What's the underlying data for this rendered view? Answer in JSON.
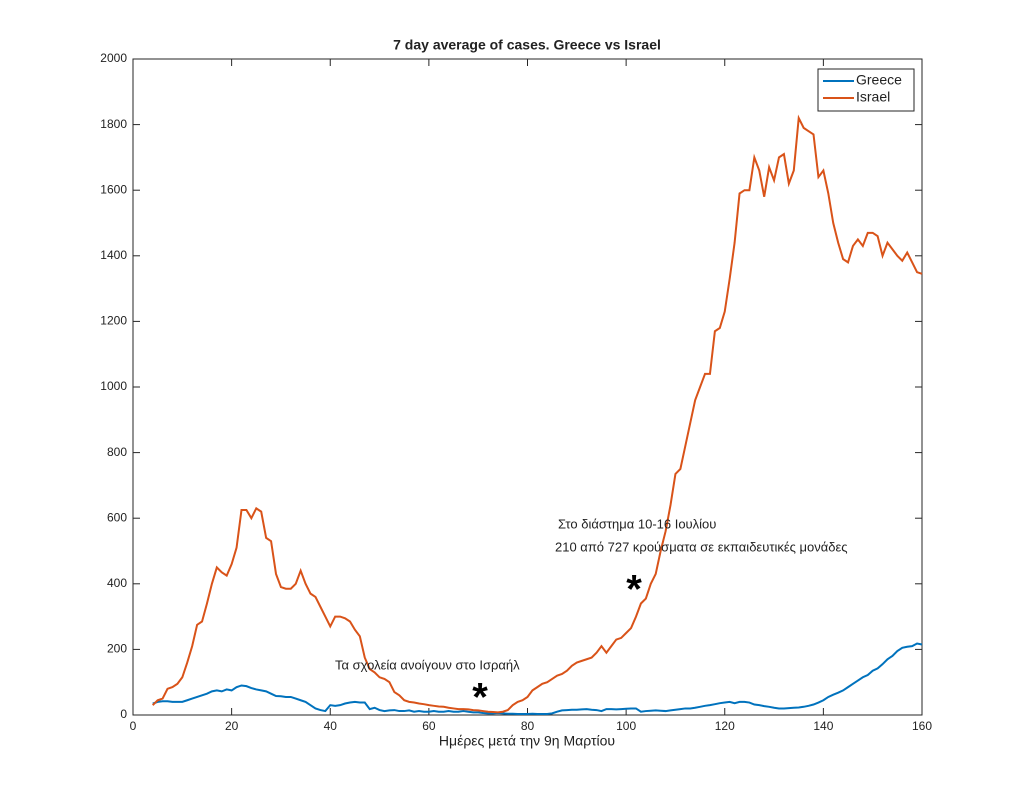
{
  "chart_data": {
    "type": "line",
    "title": "7 day average of cases. Greece vs Israel",
    "xlabel": "Ημέρες μετά την 9η Μαρτίου",
    "x": [
      4,
      5,
      6,
      7,
      8,
      9,
      10,
      11,
      12,
      13,
      14,
      15,
      16,
      17,
      18,
      19,
      20,
      21,
      22,
      23,
      24,
      25,
      26,
      27,
      28,
      29,
      30,
      31,
      32,
      33,
      34,
      35,
      36,
      37,
      38,
      39,
      40,
      41,
      42,
      43,
      44,
      45,
      46,
      47,
      48,
      49,
      50,
      51,
      52,
      53,
      54,
      55,
      56,
      57,
      58,
      59,
      60,
      61,
      62,
      63,
      64,
      65,
      66,
      67,
      68,
      69,
      70,
      71,
      72,
      73,
      74,
      75,
      76,
      77,
      78,
      79,
      80,
      81,
      82,
      83,
      84,
      85,
      86,
      87,
      88,
      89,
      90,
      91,
      92,
      93,
      94,
      95,
      96,
      97,
      98,
      99,
      100,
      101,
      102,
      103,
      104,
      105,
      106,
      107,
      108,
      109,
      110,
      111,
      112,
      113,
      114,
      115,
      116,
      117,
      118,
      119,
      120,
      121,
      122,
      123,
      124,
      125,
      126,
      127,
      128,
      129,
      130,
      131,
      132,
      133,
      134,
      135,
      136,
      137,
      138,
      139,
      140,
      141,
      142,
      143,
      144,
      145,
      146,
      147,
      148,
      149,
      150,
      151,
      152,
      153,
      154,
      155,
      156,
      157,
      158,
      159,
      160
    ],
    "series": [
      {
        "name": "Greece",
        "color": "#0072bd",
        "values": [
          35,
          40,
          42,
          42,
          40,
          40,
          40,
          45,
          50,
          55,
          60,
          65,
          72,
          75,
          72,
          78,
          75,
          85,
          90,
          88,
          82,
          78,
          75,
          72,
          65,
          58,
          57,
          55,
          55,
          50,
          45,
          40,
          30,
          20,
          15,
          12,
          30,
          28,
          30,
          35,
          38,
          40,
          38,
          38,
          18,
          22,
          15,
          12,
          14,
          15,
          12,
          12,
          14,
          10,
          12,
          10,
          10,
          12,
          10,
          10,
          12,
          10,
          10,
          12,
          10,
          8,
          8,
          6,
          5,
          5,
          6,
          5,
          4,
          4,
          3,
          3,
          3,
          4,
          3,
          3,
          3,
          5,
          10,
          14,
          15,
          16,
          16,
          17,
          18,
          16,
          15,
          12,
          18,
          18,
          17,
          18,
          19,
          20,
          20,
          10,
          12,
          13,
          14,
          13,
          12,
          14,
          16,
          18,
          20,
          20,
          22,
          25,
          28,
          30,
          33,
          36,
          38,
          40,
          36,
          40,
          40,
          38,
          32,
          30,
          27,
          25,
          22,
          20,
          20,
          21,
          22,
          23,
          25,
          28,
          32,
          38,
          45,
          55,
          62,
          68,
          75,
          85,
          95,
          105,
          115,
          122,
          135,
          142,
          155,
          170,
          180,
          195,
          205,
          208,
          210,
          218,
          215
        ]
      },
      {
        "name": "Israel",
        "color": "#d95319",
        "values": [
          30,
          45,
          50,
          80,
          85,
          95,
          115,
          160,
          210,
          275,
          285,
          340,
          400,
          450,
          435,
          425,
          460,
          510,
          625,
          625,
          600,
          630,
          620,
          540,
          530,
          430,
          390,
          385,
          385,
          400,
          440,
          400,
          370,
          360,
          330,
          300,
          270,
          300,
          300,
          295,
          285,
          260,
          240,
          175,
          140,
          130,
          115,
          110,
          100,
          70,
          60,
          45,
          40,
          38,
          35,
          33,
          30,
          28,
          26,
          25,
          22,
          20,
          18,
          18,
          17,
          15,
          14,
          12,
          10,
          9,
          8,
          10,
          15,
          30,
          40,
          45,
          55,
          75,
          85,
          95,
          100,
          110,
          120,
          125,
          135,
          150,
          160,
          165,
          170,
          175,
          190,
          210,
          190,
          210,
          230,
          235,
          250,
          265,
          300,
          340,
          355,
          400,
          430,
          500,
          560,
          640,
          735,
          750,
          820,
          890,
          960,
          1000,
          1040,
          1040,
          1170,
          1180,
          1230,
          1330,
          1440,
          1590,
          1600,
          1600,
          1700,
          1660,
          1580,
          1670,
          1630,
          1700,
          1710,
          1620,
          1660,
          1820,
          1790,
          1780,
          1770,
          1640,
          1660,
          1590,
          1500,
          1440,
          1390,
          1380,
          1430,
          1450,
          1430,
          1470,
          1470,
          1460,
          1400,
          1440,
          1420,
          1400,
          1385,
          1410,
          1380,
          1350,
          1345
        ]
      }
    ],
    "xlim": [
      0,
      160
    ],
    "xticks": [
      0,
      20,
      40,
      60,
      80,
      100,
      120,
      140,
      160
    ],
    "ylim": [
      0,
      2000
    ],
    "yticks": [
      0,
      200,
      400,
      600,
      800,
      1000,
      1200,
      1400,
      1600,
      1800,
      2000
    ],
    "legend": "northeast",
    "annotations": [
      "Τα σχολεία ανοίγουν στο Ισραήλ",
      "*",
      "Στο διάστημα 10-16 Ιουλίου",
      "210 από 727 κρούσματα σε εκπαιδευτικές μονάδες",
      "*"
    ]
  }
}
